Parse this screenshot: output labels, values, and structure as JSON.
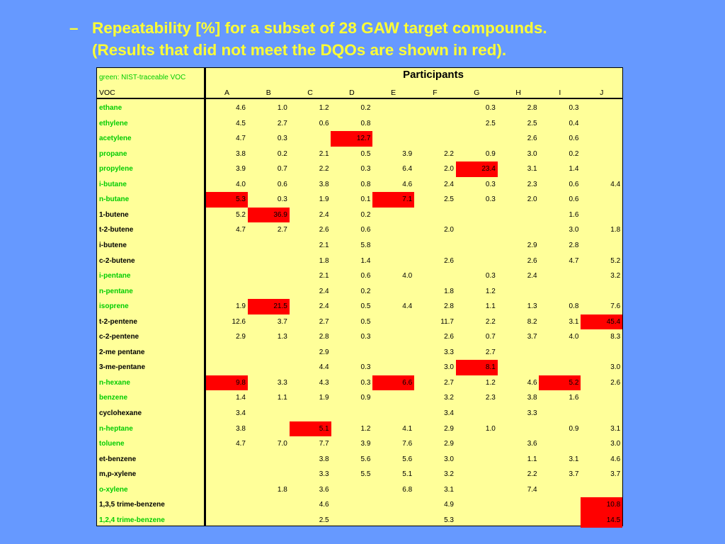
{
  "title": {
    "dash": "–",
    "line1": "Repeatability [%] for a subset of 28 GAW target compounds.",
    "line2": "(Results that did not meet the DQOs are shown in red)."
  },
  "table": {
    "note": "green: NIST-traceable VOC",
    "participants_label": "Participants",
    "voc_header": "VOC",
    "columns": [
      "A",
      "B",
      "C",
      "D",
      "E",
      "F",
      "G",
      "H",
      "I",
      "J"
    ],
    "colors": {
      "background": "#6699ff",
      "title": "#ffff33",
      "table_bg": "#ffff99",
      "nist": "#00cc00",
      "fail": "#ff0000"
    },
    "rows": [
      {
        "voc": "ethane",
        "nist": true,
        "values": [
          "4.6",
          "1.0",
          "1.2",
          "0.2",
          "",
          "",
          "0.3",
          "2.8",
          "0.3",
          ""
        ],
        "red": []
      },
      {
        "voc": "ethylene",
        "nist": true,
        "values": [
          "4.5",
          "2.7",
          "0.6",
          "0.8",
          "",
          "",
          "2.5",
          "2.5",
          "0.4",
          ""
        ],
        "red": []
      },
      {
        "voc": "acetylene",
        "nist": true,
        "values": [
          "4.7",
          "0.3",
          "",
          "12.7",
          "",
          "",
          "",
          "2.6",
          "0.6",
          ""
        ],
        "red": [
          3
        ]
      },
      {
        "voc": "propane",
        "nist": true,
        "values": [
          "3.8",
          "0.2",
          "2.1",
          "0.5",
          "3.9",
          "2.2",
          "0.9",
          "3.0",
          "0.2",
          ""
        ],
        "red": []
      },
      {
        "voc": "propylene",
        "nist": true,
        "values": [
          "3.9",
          "0.7",
          "2.2",
          "0.3",
          "6.4",
          "2.0",
          "23.4",
          "3.1",
          "1.4",
          ""
        ],
        "red": [
          6
        ]
      },
      {
        "voc": "i-butane",
        "nist": true,
        "values": [
          "4.0",
          "0.6",
          "3.8",
          "0.8",
          "4.6",
          "2.4",
          "0.3",
          "2.3",
          "0.6",
          "4.4"
        ],
        "red": []
      },
      {
        "voc": "n-butane",
        "nist": true,
        "values": [
          "5.3",
          "0.3",
          "1.9",
          "0.1",
          "7.1",
          "2.5",
          "0.3",
          "2.0",
          "0.6",
          ""
        ],
        "red": [
          0,
          4
        ]
      },
      {
        "voc": "1-butene",
        "nist": false,
        "values": [
          "5.2",
          "36.9",
          "2.4",
          "0.2",
          "",
          "",
          "",
          "",
          "1.6",
          ""
        ],
        "red": [
          1
        ]
      },
      {
        "voc": "t-2-butene",
        "nist": false,
        "values": [
          "4.7",
          "2.7",
          "2.6",
          "0.6",
          "",
          "2.0",
          "",
          "",
          "3.0",
          "1.8"
        ],
        "red": []
      },
      {
        "voc": "i-butene",
        "nist": false,
        "values": [
          "",
          "",
          "2.1",
          "5.8",
          "",
          "",
          "",
          "2.9",
          "2.8",
          ""
        ],
        "red": []
      },
      {
        "voc": "c-2-butene",
        "nist": false,
        "values": [
          "",
          "",
          "1.8",
          "1.4",
          "",
          "2.6",
          "",
          "2.6",
          "4.7",
          "5.2"
        ],
        "red": []
      },
      {
        "voc": "i-pentane",
        "nist": true,
        "values": [
          "",
          "",
          "2.1",
          "0.6",
          "4.0",
          "",
          "0.3",
          "2.4",
          "",
          "3.2"
        ],
        "red": []
      },
      {
        "voc": "n-pentane",
        "nist": true,
        "values": [
          "",
          "",
          "2.4",
          "0.2",
          "",
          "1.8",
          "1.2",
          "",
          "",
          ""
        ],
        "red": []
      },
      {
        "voc": "isoprene",
        "nist": true,
        "values": [
          "1.9",
          "21.5",
          "2.4",
          "0.5",
          "4.4",
          "2.8",
          "1.1",
          "1.3",
          "0.8",
          "7.6"
        ],
        "red": [
          1
        ]
      },
      {
        "voc": "t-2-pentene",
        "nist": false,
        "values": [
          "12.6",
          "3.7",
          "2.7",
          "0.5",
          "",
          "11.7",
          "2.2",
          "8.2",
          "3.1",
          "45.4"
        ],
        "red": [
          9
        ]
      },
      {
        "voc": "c-2-pentene",
        "nist": false,
        "values": [
          "2.9",
          "1.3",
          "2.8",
          "0.3",
          "",
          "2.6",
          "0.7",
          "3.7",
          "4.0",
          "8.3"
        ],
        "red": []
      },
      {
        "voc": "2-me pentane",
        "nist": false,
        "values": [
          "",
          "",
          "2.9",
          "",
          "",
          "3.3",
          "2.7",
          "",
          "",
          ""
        ],
        "red": []
      },
      {
        "voc": "3-me-pentane",
        "nist": false,
        "values": [
          "",
          "",
          "4.4",
          "0.3",
          "",
          "3.0",
          "8.1",
          "",
          "",
          "3.0"
        ],
        "red": [
          6
        ]
      },
      {
        "voc": "n-hexane",
        "nist": true,
        "values": [
          "9.8",
          "3.3",
          "4.3",
          "0.3",
          "6.6",
          "2.7",
          "1.2",
          "4.6",
          "5.2",
          "2.6"
        ],
        "red": [
          0,
          4,
          8
        ]
      },
      {
        "voc": "benzene",
        "nist": true,
        "values": [
          "1.4",
          "1.1",
          "1.9",
          "0.9",
          "",
          "3.2",
          "2.3",
          "3.8",
          "1.6",
          ""
        ],
        "red": []
      },
      {
        "voc": "cyclohexane",
        "nist": false,
        "values": [
          "3.4",
          "",
          "",
          "",
          "",
          "3.4",
          "",
          "3.3",
          "",
          ""
        ],
        "red": []
      },
      {
        "voc": "n-heptane",
        "nist": true,
        "values": [
          "3.8",
          "",
          "5.1",
          "1.2",
          "4.1",
          "2.9",
          "1.0",
          "",
          "0.9",
          "3.1"
        ],
        "red": [
          2
        ]
      },
      {
        "voc": "toluene",
        "nist": true,
        "values": [
          "4.7",
          "7.0",
          "7.7",
          "3.9",
          "7.6",
          "2.9",
          "",
          "3.6",
          "",
          "3.0"
        ],
        "red": []
      },
      {
        "voc": "et-benzene",
        "nist": false,
        "values": [
          "",
          "",
          "3.8",
          "5.6",
          "5.6",
          "3.0",
          "",
          "1.1",
          "3.1",
          "4.6"
        ],
        "red": []
      },
      {
        "voc": "m,p-xylene",
        "nist": false,
        "values": [
          "",
          "",
          "3.3",
          "5.5",
          "5.1",
          "3.2",
          "",
          "2.2",
          "3.7",
          "3.7"
        ],
        "red": []
      },
      {
        "voc": "o-xylene",
        "nist": true,
        "values": [
          "",
          "1.8",
          "3.6",
          "",
          "6.8",
          "3.1",
          "",
          "7.4",
          "",
          ""
        ],
        "red": []
      },
      {
        "voc": "1,3,5 trime-benzene",
        "nist": false,
        "values": [
          "",
          "",
          "4.6",
          "",
          "",
          "4.9",
          "",
          "",
          "",
          "10.8"
        ],
        "red": [
          9
        ]
      },
      {
        "voc": "1,2,4 trime-benzene",
        "nist": true,
        "values": [
          "",
          "",
          "2.5",
          "",
          "",
          "5.3",
          "",
          "",
          "",
          "14.5"
        ],
        "red": [
          9
        ]
      }
    ]
  }
}
